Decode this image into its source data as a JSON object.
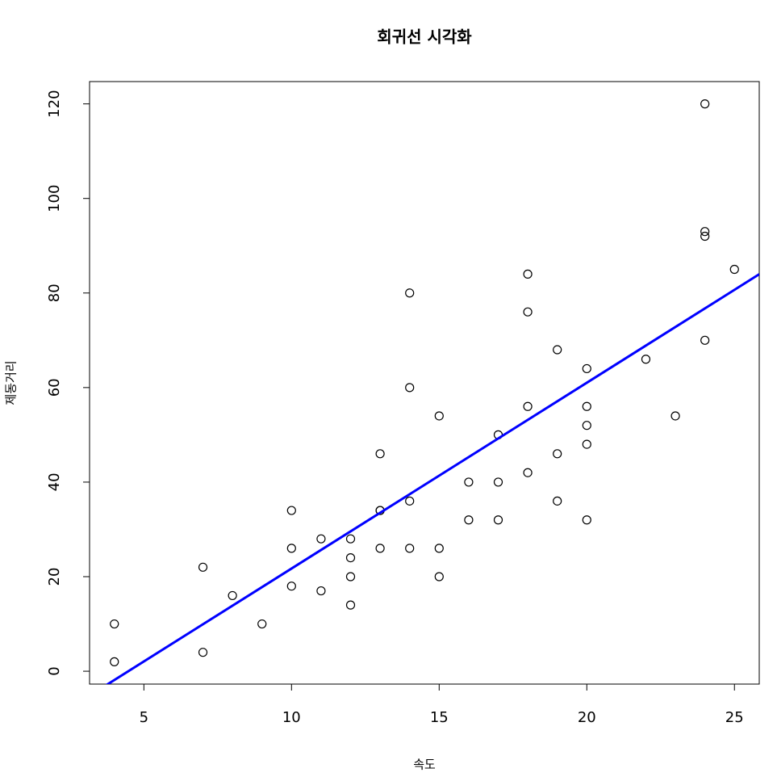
{
  "chart_data": {
    "type": "scatter",
    "title": "회귀선 시각화",
    "x_label": "속도",
    "y_label": "제동거리",
    "x": [
      4,
      4,
      7,
      7,
      8,
      9,
      10,
      10,
      10,
      11,
      11,
      12,
      12,
      12,
      12,
      13,
      13,
      13,
      13,
      14,
      14,
      14,
      14,
      15,
      15,
      15,
      16,
      16,
      17,
      17,
      17,
      18,
      18,
      18,
      18,
      19,
      19,
      19,
      20,
      20,
      20,
      20,
      20,
      22,
      23,
      24,
      24,
      24,
      24,
      25
    ],
    "values": [
      2,
      10,
      4,
      22,
      16,
      10,
      18,
      26,
      34,
      17,
      28,
      14,
      20,
      24,
      28,
      26,
      34,
      34,
      46,
      26,
      36,
      60,
      80,
      20,
      26,
      54,
      32,
      40,
      32,
      40,
      50,
      42,
      56,
      76,
      84,
      36,
      46,
      68,
      32,
      48,
      52,
      56,
      64,
      66,
      54,
      70,
      92,
      93,
      120,
      85
    ],
    "color": "#000000",
    "regression_line": {
      "intercept": -17.58,
      "slope": 3.93,
      "color": "#0000ff"
    },
    "xlim": [
      3.16,
      25.84
    ],
    "ylim": [
      -2.72,
      124.72
    ],
    "xticks": [
      5,
      10,
      15,
      20,
      25
    ],
    "yticks": [
      0,
      20,
      40,
      60,
      80,
      100,
      120
    ],
    "grid": false
  }
}
